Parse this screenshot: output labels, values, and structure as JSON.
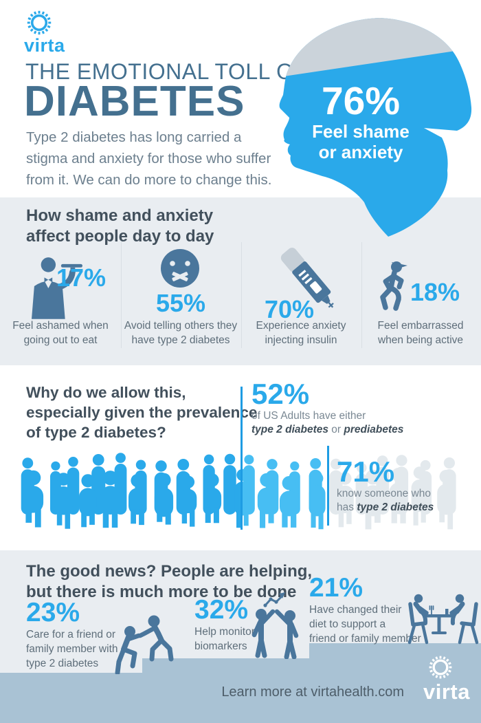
{
  "colors": {
    "accent_blue": "#2AA9EA",
    "crowd_left_blue": "#2AA9EA",
    "crowd_mid_blue": "#47BEF3",
    "crowd_pale": "#E3E9ED",
    "divider_blue": "#1E9CE3",
    "pictogram_slate": "#4A769C",
    "title_steel": "#44708F",
    "heading_dark": "#42505C",
    "section_bg": "#E9EDF1",
    "footer_band": "#A9C2D4",
    "head_cap_gray": "#CBD3DA",
    "white": "#FFFFFF"
  },
  "brand": {
    "wordmark": "virta",
    "logo_icon": "gear-sun-icon"
  },
  "header": {
    "title_line1": "THE EMOTIONAL TOLL OF",
    "title_line2": "DIABETES",
    "intro_lines": [
      "Type 2 diabetes has long carried a",
      "stigma and anxiety for those who suffer",
      "from it. We can do more to change this."
    ],
    "head_stat": {
      "value": "76%",
      "label_lines": [
        "Feel shame",
        "or anxiety"
      ]
    }
  },
  "day_to_day": {
    "heading_lines": [
      "How shame and anxiety",
      "affect people day to day"
    ],
    "stats": [
      {
        "value": "17%",
        "icon": "waiter-tray-icon",
        "label_lines": [
          "Feel ashamed when",
          "going out to eat"
        ]
      },
      {
        "value": "55%",
        "icon": "sealed-mouth-face-icon",
        "label_lines": [
          "Avoid telling others they",
          "have type 2 diabetes"
        ]
      },
      {
        "value": "70%",
        "icon": "insulin-pen-icon",
        "label_lines": [
          "Experience anxiety",
          "injecting insulin"
        ]
      },
      {
        "value": "18%",
        "icon": "running-person-icon",
        "label_lines": [
          "Feel embarrassed",
          "when being active"
        ]
      }
    ]
  },
  "prevalence": {
    "heading_lines": [
      "Why do we allow this,",
      "especially given the prevalence",
      "of type 2 diabetes?"
    ],
    "stat_either": {
      "value": "52%",
      "sub_line1": "of US Adults have either",
      "bold1": "type 2 diabetes",
      "mid": " or ",
      "bold2": "prediabetes"
    },
    "stat_know": {
      "value": "71%",
      "sub_line1": "know someone who",
      "sub_line2_plain": "has ",
      "sub_line2_bold": "type 2 diabetes"
    }
  },
  "good_news": {
    "heading_lines": [
      "The good news? People are helping,",
      "but there is much more to be done"
    ],
    "stats": [
      {
        "value": "23%",
        "icon": "helping-up-icon",
        "label_lines": [
          "Care for a friend or",
          "family member with",
          "type 2 diabetes"
        ]
      },
      {
        "value": "32%",
        "icon": "high-five-chart-icon",
        "label_lines": [
          "Help monitor",
          "biomarkers"
        ]
      },
      {
        "value": "21%",
        "icon": "dining-together-icon",
        "label_lines": [
          "Have changed their",
          "diet to support a",
          "friend or family member"
        ]
      }
    ]
  },
  "footer": {
    "link_text": "Learn more at virtahealth.com",
    "wordmark": "virta",
    "logo_icon": "gear-sun-icon"
  }
}
